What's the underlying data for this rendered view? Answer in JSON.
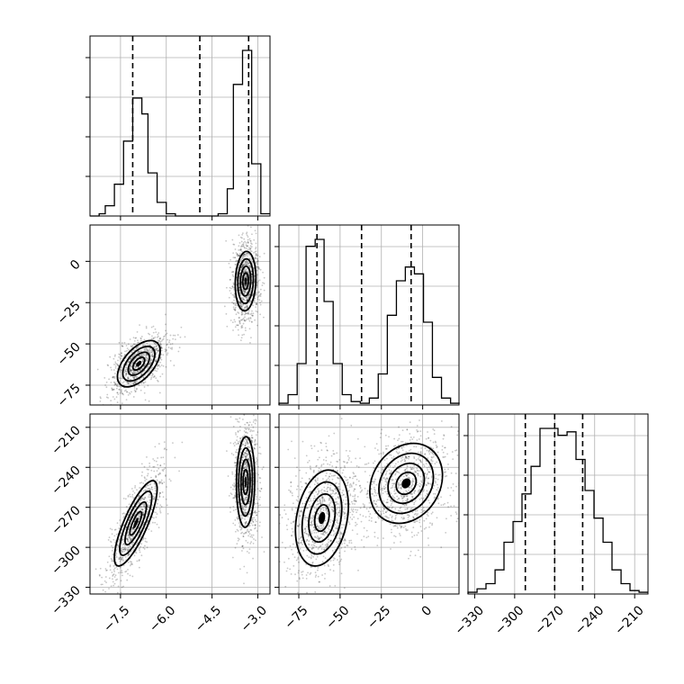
{
  "chart_data": {
    "type": "corner",
    "grid": true,
    "parameters": [
      {
        "range": [
          -8.5,
          -2.6
        ],
        "ticks": [
          -7.5,
          -6.0,
          -4.5,
          -3.0
        ],
        "tick_labels": [
          "−7.5",
          "−6.0",
          "−4.5",
          "−3.0"
        ],
        "quantiles": [
          -7.1,
          -4.9,
          -3.3
        ]
      },
      {
        "range": [
          -87,
          22
        ],
        "ticks": [
          -75,
          -50,
          -25,
          0
        ],
        "tick_labels": [
          "−75",
          "−50",
          "−25",
          "0"
        ],
        "quantiles": [
          -64,
          -37,
          -7
        ]
      },
      {
        "range": [
          -335,
          -200
        ],
        "ticks": [
          -330,
          -300,
          -270,
          -240,
          -210
        ],
        "tick_labels": [
          "−330",
          "−300",
          "−270",
          "−240",
          "−210"
        ],
        "quantiles": [
          -292,
          -270,
          -249
        ]
      }
    ],
    "histograms": [
      {
        "param": 0,
        "edges": [
          -8.5,
          -8.2,
          -8.0,
          -7.7,
          -7.4,
          -7.1,
          -6.8,
          -6.6,
          -6.3,
          -6.0,
          -5.7,
          -5.4,
          -5.2,
          -4.9,
          -4.6,
          -4.3,
          -4.0,
          -3.8,
          -3.5,
          -3.2,
          -2.9,
          -2.6
        ],
        "counts": [
          0,
          10,
          45,
          140,
          330,
          520,
          450,
          190,
          60,
          10,
          0,
          0,
          0,
          0,
          0,
          10,
          120,
          580,
          730,
          230,
          10
        ]
      },
      {
        "param": 1,
        "edges": [
          -87,
          -81.5,
          -76,
          -70.6,
          -65.1,
          -59.7,
          -54.2,
          -48.7,
          -43.3,
          -37.8,
          -32.3,
          -26.9,
          -21.4,
          -15.9,
          -10.5,
          -5,
          0.5,
          5.9,
          11.4,
          16.9,
          22.4
        ],
        "counts": [
          5,
          30,
          120,
          460,
          480,
          300,
          120,
          30,
          10,
          5,
          20,
          90,
          260,
          360,
          400,
          380,
          240,
          80,
          20,
          5
        ]
      },
      {
        "param": 2,
        "edges": [
          -335,
          -328.2,
          -321.5,
          -314.7,
          -308,
          -301.2,
          -294.5,
          -287.7,
          -281,
          -274.2,
          -267.5,
          -260.7,
          -254,
          -247.2,
          -240.5,
          -233.7,
          -227,
          -220.2,
          -213.5,
          -206.7,
          -200
        ],
        "counts": [
          5,
          15,
          30,
          70,
          150,
          210,
          290,
          370,
          480,
          480,
          460,
          470,
          390,
          300,
          220,
          150,
          70,
          30,
          10,
          5
        ]
      }
    ],
    "scatter_panels": [
      {
        "x_param": 0,
        "y_param": 1,
        "clusters": [
          {
            "center": [
              -6.9,
              -62
            ],
            "spread": [
              0.35,
              7
            ],
            "rho": 0.55,
            "n": 900
          },
          {
            "center": [
              -3.4,
              -12
            ],
            "spread": [
              0.17,
              9
            ],
            "rho": 0.1,
            "n": 900
          }
        ]
      },
      {
        "x_param": 0,
        "y_param": 2,
        "clusters": [
          {
            "center": [
              -7.0,
              -282
            ],
            "spread": [
              0.35,
              16
            ],
            "rho": 0.8,
            "n": 900
          },
          {
            "center": [
              -3.4,
              -251
            ],
            "spread": [
              0.15,
              17
            ],
            "rho": 0.05,
            "n": 900
          }
        ]
      },
      {
        "x_param": 1,
        "y_param": 2,
        "clusters": [
          {
            "center": [
              -61,
              -278
            ],
            "spread": [
              8,
              18
            ],
            "rho": 0.25,
            "n": 900
          },
          {
            "center": [
              -10,
              -252
            ],
            "spread": [
              11,
              15
            ],
            "rho": 0.2,
            "n": 900
          }
        ]
      }
    ]
  }
}
